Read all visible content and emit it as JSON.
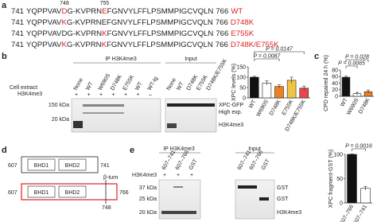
{
  "a": {
    "label": "a",
    "marker_748": "748",
    "marker_755": "755",
    "sequences": [
      {
        "start": "741",
        "pre": "YQPPVAV",
        "r1": "D",
        "mid": "G-KVPRN",
        "r2": "E",
        "post": "FGNVYLFFLPSMMPIGCVQLN",
        "end": "766",
        "name": "WT"
      },
      {
        "start": "741",
        "pre": "YQPPVAV",
        "r1": "K",
        "mid": "G-KVPRN",
        "r2": "E",
        "post": "FGNVYLFFLPSMMPIGCVQLN",
        "end": "766",
        "name": "D748K"
      },
      {
        "start": "741",
        "pre": "YQPPVAV",
        "r1": "D",
        "mid": "G-KVPRN",
        "r2": "K",
        "post": "FGNVYLFFLPSMMPIGCVQLN",
        "end": "766",
        "name": "E755K"
      },
      {
        "start": "741",
        "pre": "YQPPVAV",
        "r1": "K",
        "mid": "G-KVPRN",
        "r2": "K",
        "post": "FGNVYLFFLPSMMPIGCVQLN",
        "end": "766",
        "name": "D748K/E755K"
      }
    ]
  },
  "b": {
    "label": "b",
    "ip_header": "IP H3K4me3",
    "input_header": "Input",
    "ip_lanes": [
      "None",
      "WT",
      "W690S",
      "D748K",
      "E755K",
      "WT",
      "WT-Ig"
    ],
    "input_lanes": [
      "None",
      "WT",
      "D748K",
      "E755K",
      "D748K/E755K"
    ],
    "cell_extract": "Cell extract",
    "h3k4me3": "H3K4me3",
    "ip_signs": [
      "+",
      "+",
      "+",
      "+",
      "+",
      "+",
      "–"
    ],
    "mw_150": "150 kDa",
    "mw_20": "20 kDa",
    "band_xpc": "XPC-GFP",
    "band_high": "High exp.",
    "band_h3": "H3K4me3"
  },
  "c": {
    "label": "c"
  },
  "d": {
    "label": "d",
    "start_short": "607",
    "start_long": "607",
    "bhd1_short": "BHD1",
    "bhd2_short": "BHD2",
    "bhd1_long": "BHD1",
    "bhd2_long": "BHD2",
    "end_short": "741",
    "end_long": "766",
    "beta_turn": "β-turn",
    "residue": "748"
  },
  "e": {
    "label": "e",
    "ip_header": "IP H3K4me3",
    "input_header": "Input",
    "ip_lanes": [
      "607–741",
      "607–766",
      "GST"
    ],
    "input_lanes": [
      "607–741",
      "607–766",
      "GST"
    ],
    "h3k4me3": "H3K4me3",
    "signs": [
      "+",
      "+",
      "+"
    ],
    "mw_37": "37 kDa",
    "mw_25": "25 kDa",
    "mw_20": "20 kDa",
    "band_gst1": "GST",
    "band_gst2": "GST",
    "band_h3": "H3K4me3"
  },
  "chart_data": [
    {
      "type": "bar",
      "ylabel": "XPC levels (%)",
      "categories": [
        "WT",
        "W690S",
        "D748K",
        "E755K",
        "D748K/E755K"
      ],
      "values": [
        100,
        72,
        55,
        85,
        47
      ],
      "errors": [
        4,
        10,
        8,
        15,
        10
      ],
      "colors": [
        "#111111",
        "#ffffff",
        "#f07f1f",
        "#f3c443",
        "#e84848"
      ],
      "ylim": [
        0,
        150
      ],
      "yticks": [
        0,
        50,
        100,
        150
      ],
      "annotations": [
        "P = 0.0147",
        "P = 0.0087"
      ]
    },
    {
      "type": "bar",
      "ylabel": "CPD repaired 24 h (%)",
      "categories": [
        "WT",
        "W690S",
        "D748K"
      ],
      "values": [
        58,
        8,
        14
      ],
      "errors": [
        3,
        4,
        5
      ],
      "colors": [
        "#111111",
        "#ffffff",
        "#f07f1f"
      ],
      "ylim": [
        0,
        80
      ],
      "yticks": [
        0,
        20,
        40,
        60,
        80
      ],
      "annotations": [
        "P = 0.028",
        "P = 0.0065"
      ]
    },
    {
      "type": "bar",
      "ylabel": "XPC fragment-GST (%)",
      "categories": [
        "607–766",
        "607–741"
      ],
      "values": [
        100,
        30
      ],
      "errors": [
        1,
        4
      ],
      "colors": [
        "#111111",
        "#ffffff"
      ],
      "ylim": [
        0,
        100
      ],
      "yticks": [
        0,
        50,
        100
      ],
      "annotations": [
        "P = 0.0016"
      ]
    }
  ]
}
